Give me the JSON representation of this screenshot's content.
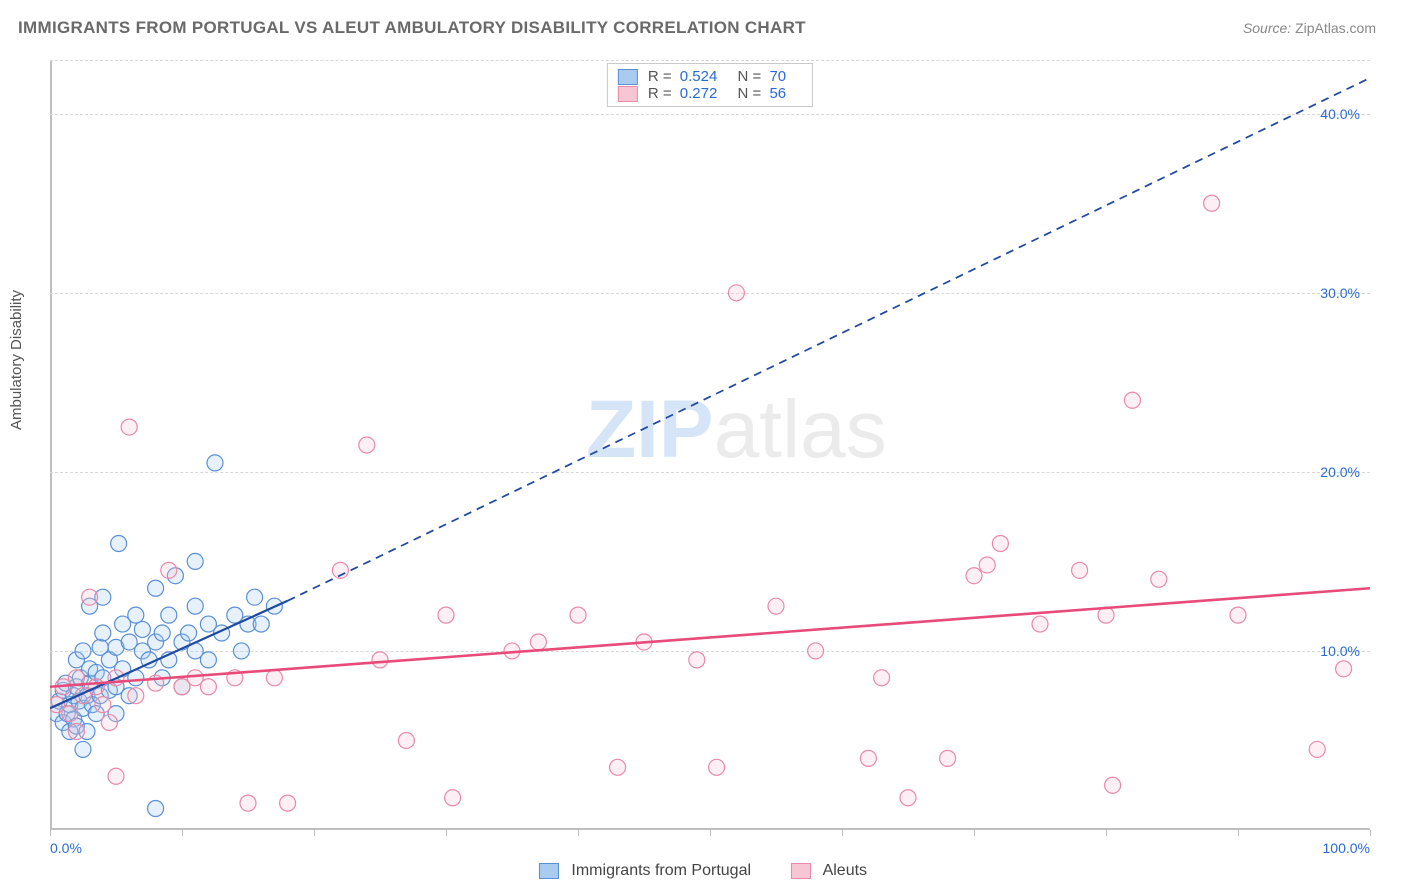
{
  "title": "IMMIGRANTS FROM PORTUGAL VS ALEUT AMBULATORY DISABILITY CORRELATION CHART",
  "source_label": "Source:",
  "source_value": "ZipAtlas.com",
  "ylabel": "Ambulatory Disability",
  "watermark_part1": "ZIP",
  "watermark_part2": "atlas",
  "chart": {
    "type": "scatter",
    "background_color": "#ffffff",
    "grid_color": "#d8d8d8",
    "axis_color": "#bfbfbf",
    "tick_label_color": "#2a6ad4",
    "tick_fontsize": 14,
    "xlim": [
      0,
      100
    ],
    "ylim": [
      0,
      43
    ],
    "x_ticks_minor_step": 10,
    "x_tick_labels": [
      {
        "pos": 0,
        "label": "0.0%"
      },
      {
        "pos": 100,
        "label": "100.0%"
      }
    ],
    "y_tick_labels": [
      {
        "pos": 10,
        "label": "10.0%"
      },
      {
        "pos": 20,
        "label": "20.0%"
      },
      {
        "pos": 30,
        "label": "30.0%"
      },
      {
        "pos": 40,
        "label": "40.0%"
      }
    ],
    "marker_radius": 8,
    "marker_stroke_width": 1.2,
    "marker_fill_opacity": 0.28,
    "series": [
      {
        "name": "Immigrants from Portugal",
        "color_fill": "#a9cbef",
        "color_stroke": "#5a8fd6",
        "R": "0.524",
        "N": "70",
        "regression": {
          "solid": {
            "x1": 0,
            "y1": 6.8,
            "x2": 18,
            "y2": 12.8
          },
          "dashed": {
            "x1": 18,
            "y1": 12.8,
            "x2": 100,
            "y2": 42.0
          },
          "color": "#1f4aa0",
          "width": 2.2
        },
        "points": [
          [
            0.5,
            6.5
          ],
          [
            0.7,
            7.2
          ],
          [
            1.0,
            6.0
          ],
          [
            1.0,
            7.8
          ],
          [
            1.2,
            8.2
          ],
          [
            1.3,
            6.5
          ],
          [
            1.5,
            7.0
          ],
          [
            1.5,
            5.5
          ],
          [
            1.8,
            7.5
          ],
          [
            1.8,
            6.2
          ],
          [
            2.0,
            8.0
          ],
          [
            2.0,
            5.8
          ],
          [
            2.0,
            9.5
          ],
          [
            2.2,
            7.2
          ],
          [
            2.3,
            8.5
          ],
          [
            2.5,
            6.8
          ],
          [
            2.5,
            10.0
          ],
          [
            2.8,
            7.5
          ],
          [
            2.8,
            5.5
          ],
          [
            3.0,
            8.2
          ],
          [
            3.0,
            9.0
          ],
          [
            3.0,
            12.5
          ],
          [
            3.2,
            7.0
          ],
          [
            3.5,
            8.8
          ],
          [
            3.5,
            6.5
          ],
          [
            3.8,
            10.2
          ],
          [
            3.8,
            7.5
          ],
          [
            4.0,
            11.0
          ],
          [
            4.0,
            8.5
          ],
          [
            4.0,
            13.0
          ],
          [
            4.5,
            7.8
          ],
          [
            4.5,
            9.5
          ],
          [
            5.0,
            10.2
          ],
          [
            5.0,
            8.0
          ],
          [
            5.0,
            6.5
          ],
          [
            5.2,
            16.0
          ],
          [
            5.5,
            11.5
          ],
          [
            5.5,
            9.0
          ],
          [
            6.0,
            10.5
          ],
          [
            6.0,
            7.5
          ],
          [
            6.5,
            12.0
          ],
          [
            6.5,
            8.5
          ],
          [
            7.0,
            10.0
          ],
          [
            7.0,
            11.2
          ],
          [
            7.5,
            9.5
          ],
          [
            8.0,
            13.5
          ],
          [
            8.0,
            10.5
          ],
          [
            8.5,
            8.5
          ],
          [
            8.5,
            11.0
          ],
          [
            9.0,
            12.0
          ],
          [
            9.0,
            9.5
          ],
          [
            9.5,
            14.2
          ],
          [
            10.0,
            10.5
          ],
          [
            10.0,
            8.0
          ],
          [
            10.5,
            11.0
          ],
          [
            11.0,
            12.5
          ],
          [
            11.0,
            10.0
          ],
          [
            11.0,
            15.0
          ],
          [
            12.0,
            11.5
          ],
          [
            12.0,
            9.5
          ],
          [
            12.5,
            20.5
          ],
          [
            13.0,
            11.0
          ],
          [
            14.0,
            12.0
          ],
          [
            14.5,
            10.0
          ],
          [
            15.0,
            11.5
          ],
          [
            15.5,
            13.0
          ],
          [
            16.0,
            11.5
          ],
          [
            17.0,
            12.5
          ],
          [
            8.0,
            1.2
          ],
          [
            2.5,
            4.5
          ]
        ]
      },
      {
        "name": "Aleuts",
        "color_fill": "#f7c6d4",
        "color_stroke": "#e88aa8",
        "R": "0.272",
        "N": "56",
        "regression": {
          "solid": {
            "x1": 0,
            "y1": 8.0,
            "x2": 100,
            "y2": 13.5
          },
          "dashed": null,
          "color": "#e84a7a",
          "width": 2.6
        },
        "points": [
          [
            0.5,
            7.0
          ],
          [
            1.0,
            8.0
          ],
          [
            1.5,
            6.5
          ],
          [
            2.0,
            8.5
          ],
          [
            2.0,
            5.5
          ],
          [
            2.5,
            7.5
          ],
          [
            3.0,
            13.0
          ],
          [
            3.5,
            8.0
          ],
          [
            4.0,
            7.0
          ],
          [
            4.5,
            6.0
          ],
          [
            5.0,
            3.0
          ],
          [
            5.0,
            8.5
          ],
          [
            6.0,
            22.5
          ],
          [
            6.5,
            7.5
          ],
          [
            8.0,
            8.2
          ],
          [
            9.0,
            14.5
          ],
          [
            10.0,
            8.0
          ],
          [
            11.0,
            8.5
          ],
          [
            12.0,
            8.0
          ],
          [
            14.0,
            8.5
          ],
          [
            15.0,
            1.5
          ],
          [
            17.0,
            8.5
          ],
          [
            18.0,
            1.5
          ],
          [
            22.0,
            14.5
          ],
          [
            24.0,
            21.5
          ],
          [
            25.0,
            9.5
          ],
          [
            27.0,
            5.0
          ],
          [
            30.0,
            12.0
          ],
          [
            30.5,
            1.8
          ],
          [
            35.0,
            10.0
          ],
          [
            37.0,
            10.5
          ],
          [
            40.0,
            12.0
          ],
          [
            43.0,
            3.5
          ],
          [
            45.0,
            10.5
          ],
          [
            49.0,
            9.5
          ],
          [
            50.5,
            3.5
          ],
          [
            52.0,
            30.0
          ],
          [
            55.0,
            12.5
          ],
          [
            58.0,
            10.0
          ],
          [
            62.0,
            4.0
          ],
          [
            63.0,
            8.5
          ],
          [
            65.0,
            1.8
          ],
          [
            68.0,
            4.0
          ],
          [
            70.0,
            14.2
          ],
          [
            71.0,
            14.8
          ],
          [
            72.0,
            16.0
          ],
          [
            75.0,
            11.5
          ],
          [
            78.0,
            14.5
          ],
          [
            80.0,
            12.0
          ],
          [
            80.5,
            2.5
          ],
          [
            82.0,
            24.0
          ],
          [
            84.0,
            14.0
          ],
          [
            88.0,
            35.0
          ],
          [
            90.0,
            12.0
          ],
          [
            96.0,
            4.5
          ],
          [
            98.0,
            9.0
          ]
        ]
      }
    ],
    "legend_top": {
      "stat1_label": "R =",
      "stat2_label": "N ="
    },
    "legend_bottom": {
      "items": [
        {
          "swatch_fill": "#a9cbef",
          "swatch_stroke": "#5a8fd6",
          "label": "Immigrants from Portugal"
        },
        {
          "swatch_fill": "#f7c6d4",
          "swatch_stroke": "#e88aa8",
          "label": "Aleuts"
        }
      ]
    }
  }
}
